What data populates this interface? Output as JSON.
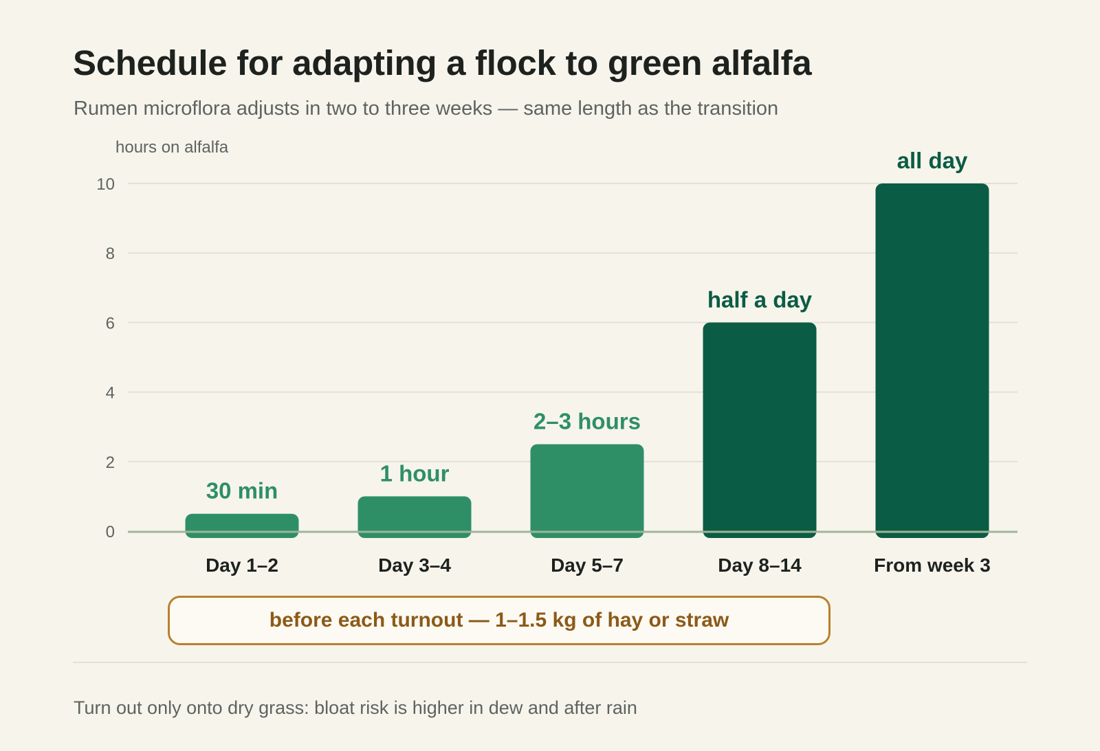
{
  "chart_data": {
    "type": "bar",
    "title": "Schedule for adapting a flock to green alfalfa",
    "subtitle": "Rumen microflora adjusts in two to three weeks — same length as the transition",
    "ylabel": "hours on alfalfa",
    "xlabel": "",
    "categories": [
      "Day 1–2",
      "Day 3–4",
      "Day 5–7",
      "Day 8–14",
      "From week 3"
    ],
    "values": [
      0.5,
      1,
      2.5,
      6,
      10
    ],
    "data_labels": [
      "30 min",
      "1 hour",
      "2–3 hours",
      "half a day",
      "all day"
    ],
    "yticks": [
      0,
      2,
      4,
      6,
      8,
      10
    ],
    "ylim": [
      0,
      10
    ],
    "grid": true,
    "colors": {
      "early": "#2e8f67",
      "late": "#0b5c44",
      "axis": "#9fb59a",
      "grid": "#e3e0d7"
    },
    "bar_color_groups": [
      "early",
      "early",
      "early",
      "late",
      "late"
    ]
  },
  "note": "before each turnout — 1–1.5 kg of hay or straw",
  "footnote": "Turn out only onto dry grass: bloat risk is higher in dew and after rain"
}
